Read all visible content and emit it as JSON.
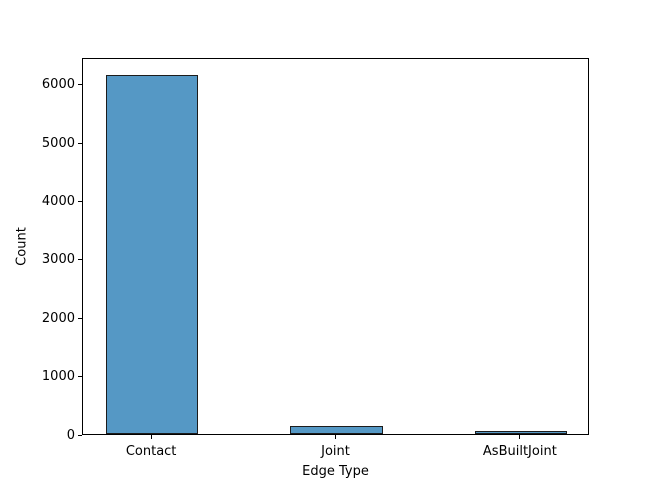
{
  "chart_data": {
    "type": "bar",
    "categories": [
      "Contact",
      "Joint",
      "AsBuiltJoint"
    ],
    "values": [
      6150,
      140,
      55
    ],
    "title": "",
    "xlabel": "Edge Type",
    "ylabel": "Count",
    "yticks": [
      0,
      1000,
      2000,
      3000,
      4000,
      5000,
      6000
    ],
    "ylim": [
      0,
      6460
    ],
    "xlim": [
      -0.375,
      2.375
    ],
    "bar_width_units": 0.5,
    "grid": false,
    "legend": "none",
    "colors": {
      "bar_fill": "#5598c5",
      "bar_edge": "#1c1c1c",
      "spine": "#000000",
      "text": "#000000",
      "background": "#ffffff"
    }
  }
}
